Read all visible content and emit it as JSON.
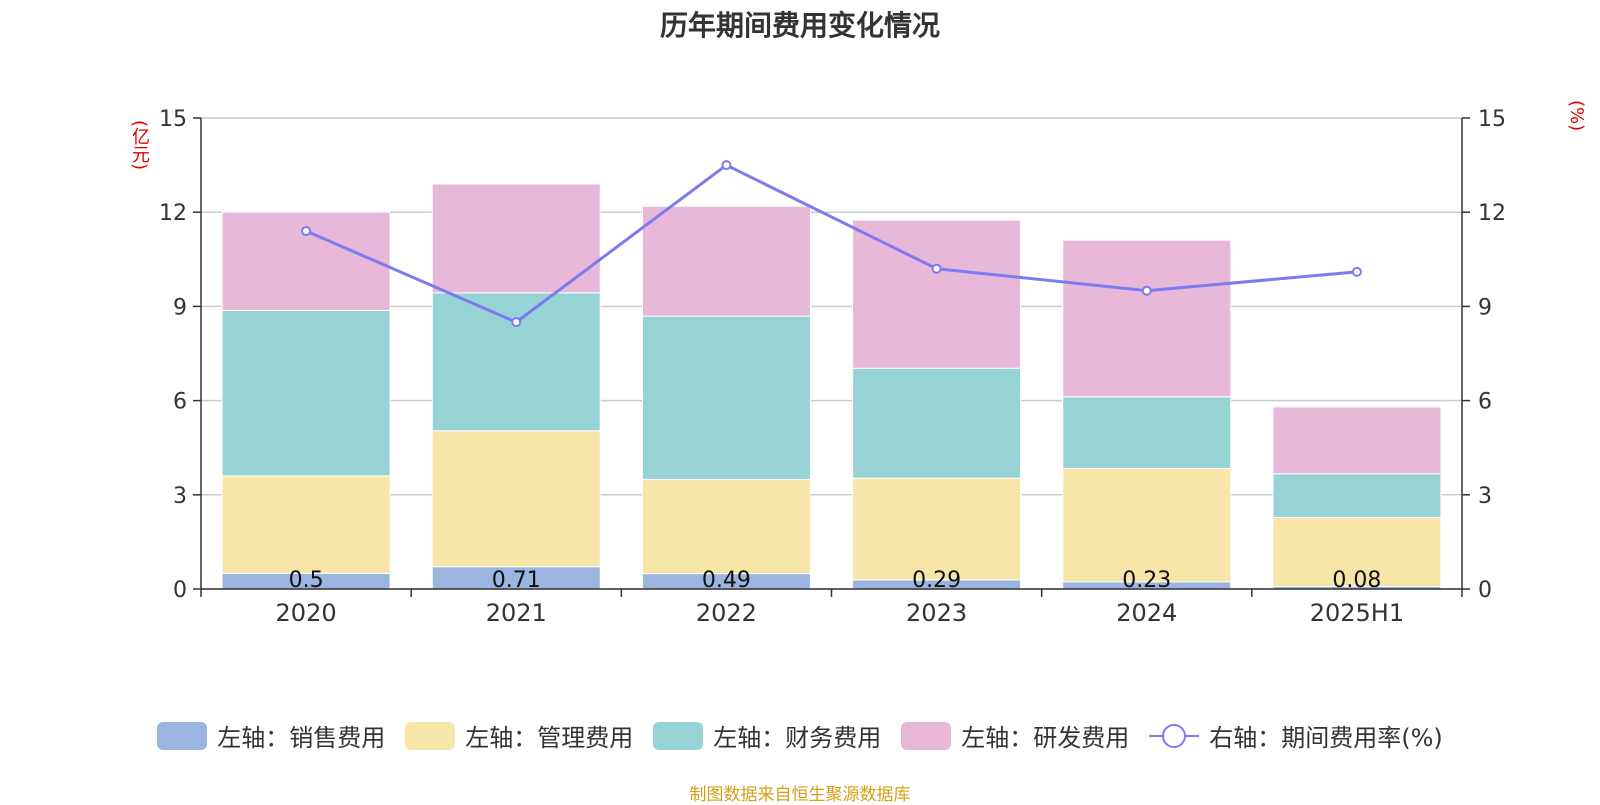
{
  "title": "历年期间费用变化情况",
  "left_unit": "(亿元)",
  "right_unit": "(%)",
  "source": "制图数据来自恒生聚源数据库",
  "legend": [
    {
      "label": "左轴：销售费用",
      "color": "#9bb4e0",
      "type": "bar"
    },
    {
      "label": "左轴：管理费用",
      "color": "#f8e6a8",
      "type": "bar"
    },
    {
      "label": "左轴：财务费用",
      "color": "#97d3d4",
      "type": "bar"
    },
    {
      "label": "左轴：研发费用",
      "color": "#e7b8d8",
      "type": "bar"
    },
    {
      "label": "右轴：期间费用率(%)",
      "color": "#7b7bef",
      "type": "line"
    }
  ],
  "chart_data": {
    "type": "bar",
    "categories": [
      "2020",
      "2021",
      "2022",
      "2023",
      "2024",
      "2025H1"
    ],
    "ylim_left": [
      0,
      15
    ],
    "ylim_right": [
      0,
      15
    ],
    "yticks_left": [
      0,
      3,
      6,
      9,
      12,
      15
    ],
    "yticks_right": [
      0,
      3,
      6,
      9,
      12,
      15
    ],
    "stack_colors": [
      "#9bb4e0",
      "#f8e6a8",
      "#97d3d4",
      "#e7b8d8"
    ],
    "line_color": "#7b7bef",
    "grid": true,
    "legend_position": "bottom",
    "series": [
      {
        "name": "左轴：销售费用",
        "axis": "left",
        "values": [
          0.5,
          0.71,
          0.49,
          0.29,
          0.23,
          0.08
        ]
      },
      {
        "name": "左轴：管理费用",
        "axis": "left",
        "values": [
          3.1,
          4.33,
          3.0,
          3.24,
          3.61,
          2.2
        ]
      },
      {
        "name": "左轴：财务费用",
        "axis": "left",
        "values": [
          5.27,
          4.39,
          5.2,
          3.5,
          2.28,
          1.39
        ]
      },
      {
        "name": "左轴：研发费用",
        "axis": "left",
        "values": [
          3.13,
          3.47,
          3.5,
          4.72,
          4.99,
          2.13
        ]
      },
      {
        "name": "右轴：期间费用率(%)",
        "axis": "right",
        "type": "line",
        "values": [
          11.4,
          8.5,
          13.5,
          10.2,
          9.5,
          10.1
        ]
      }
    ],
    "data_labels": [
      "0.5",
      "0.71",
      "0.49",
      "0.29",
      "0.23",
      "0.08"
    ]
  }
}
